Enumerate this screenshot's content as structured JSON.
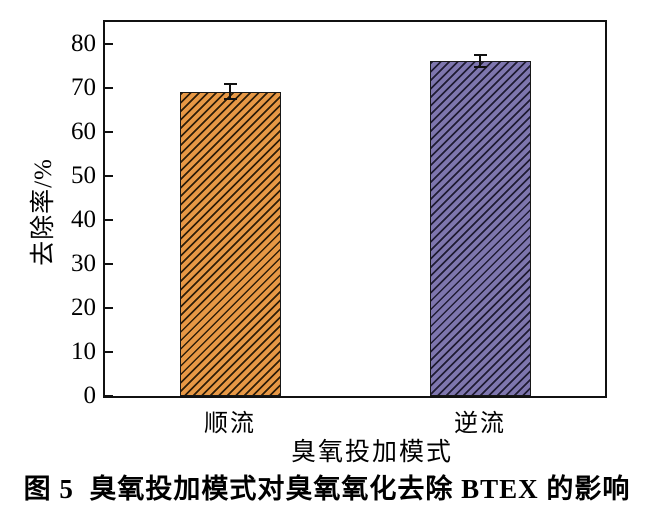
{
  "figure": {
    "caption": "图 5  臭氧投加模式对臭氧氧化去除 BTEX 的影响"
  },
  "chart_data": {
    "type": "bar",
    "title": "",
    "xlabel": "臭氧投加模式",
    "ylabel": "去除率/%",
    "categories": [
      "顺流",
      "逆流"
    ],
    "values": [
      69.2,
      76.2
    ],
    "errors": [
      1.8,
      1.4
    ],
    "ylim": [
      0,
      85
    ],
    "yticks": [
      0,
      10,
      20,
      30,
      40,
      50,
      60,
      70,
      80
    ],
    "grid": false,
    "legend": "none",
    "bars": [
      {
        "category": "顺流",
        "value": 69.2,
        "error": 1.8,
        "fill": "#e79845",
        "hatch": "/",
        "hatch_color": "#2e1d08"
      },
      {
        "category": "逆流",
        "value": 76.2,
        "error": 1.4,
        "fill": "#7e76ae",
        "hatch": "/",
        "hatch_color": "#1f1b33"
      }
    ],
    "axis_color": "#111111",
    "error_bar_color": "#111111"
  }
}
